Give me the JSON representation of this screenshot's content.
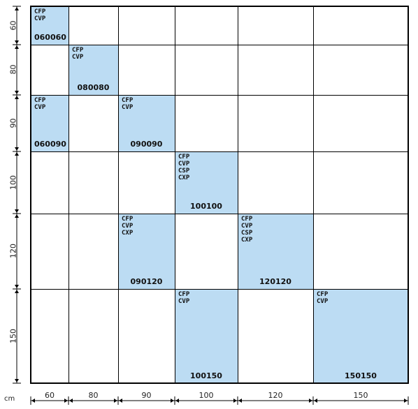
{
  "unit": "cm",
  "columns": [
    "60",
    "80",
    "90",
    "100",
    "120",
    "150"
  ],
  "rows": [
    "60",
    "80",
    "90",
    "100",
    "120",
    "150"
  ],
  "cells": [
    {
      "row": 0,
      "col": 0,
      "codes": [
        "CFP",
        "CVP"
      ],
      "ref": "060060",
      "ref_align": "left"
    },
    {
      "row": 1,
      "col": 1,
      "codes": [
        "CFP",
        "CVP"
      ],
      "ref": "080080",
      "ref_align": "center"
    },
    {
      "row": 2,
      "col": 0,
      "codes": [
        "CFP",
        "CVP"
      ],
      "ref": "060090",
      "ref_align": "left"
    },
    {
      "row": 2,
      "col": 2,
      "codes": [
        "CFP",
        "CVP"
      ],
      "ref": "090090",
      "ref_align": "center"
    },
    {
      "row": 3,
      "col": 3,
      "codes": [
        "CFP",
        "CVP",
        "CSP",
        "CXP"
      ],
      "ref": "100100",
      "ref_align": "center"
    },
    {
      "row": 4,
      "col": 2,
      "codes": [
        "CFP",
        "CVP",
        "CXP"
      ],
      "ref": "090120",
      "ref_align": "center"
    },
    {
      "row": 4,
      "col": 4,
      "codes": [
        "CFP",
        "CVP",
        "CSP",
        "CXP"
      ],
      "ref": "120120",
      "ref_align": "center"
    },
    {
      "row": 5,
      "col": 3,
      "codes": [
        "CFP",
        "CVP"
      ],
      "ref": "100150",
      "ref_align": "center"
    },
    {
      "row": 5,
      "col": 5,
      "codes": [
        "CFP",
        "CVP"
      ],
      "ref": "150150",
      "ref_align": "center"
    }
  ],
  "colors": {
    "fill": "#bcdcf3",
    "line": "#000000"
  }
}
